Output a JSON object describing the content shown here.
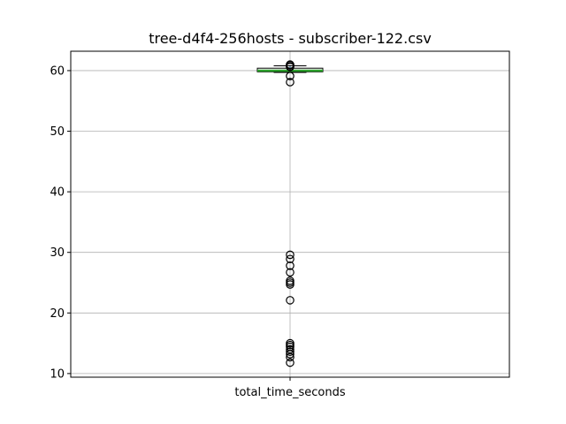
{
  "chart_data": {
    "type": "box",
    "title": "tree-d4f4-256hosts - subscriber-122.csv",
    "xlabel": "",
    "ylabel": "",
    "categories": [
      "total_time_seconds"
    ],
    "ylim": [
      9.4,
      63.2
    ],
    "yticks": [
      10,
      20,
      30,
      40,
      50,
      60
    ],
    "grid": true,
    "box": {
      "q1": 59.8,
      "median": 60.0,
      "q3": 60.4,
      "whisker_low": 59.7,
      "whisker_high": 60.8
    },
    "outliers": [
      61.0,
      60.9,
      60.7,
      60.6,
      59.1,
      58.1,
      29.6,
      28.9,
      27.8,
      26.7,
      25.3,
      25.0,
      24.7,
      22.1,
      15.0,
      14.7,
      14.4,
      14.0,
      13.6,
      13.2,
      12.7,
      11.8
    ],
    "colors": {
      "box": "#000000",
      "median": "#2ca02c",
      "whisker": "#1f77b4",
      "grid": "#b0b0b0"
    }
  }
}
